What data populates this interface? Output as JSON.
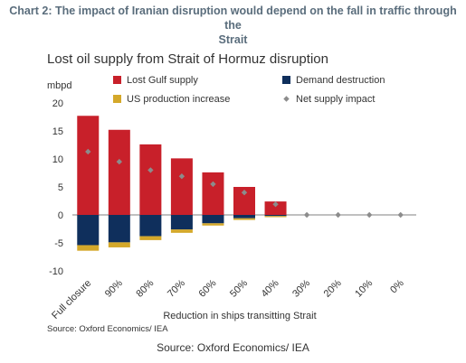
{
  "heading_line1": "Chart 2: The impact of Iranian disruption would depend on the fall in traffic through the",
  "heading_line2": "Strait",
  "footer_source": "Source: Oxford Economics/ IEA",
  "colors": {
    "lost_gulf_supply": "#c8202a",
    "demand_destruction": "#0f2f5c",
    "us_production_increase": "#d4a82a",
    "net_supply_impact": "#8c8c8c"
  },
  "chart_data": {
    "type": "bar",
    "title": "Lost oil supply from Strait of Hormuz disruption",
    "ylabel": "mbpd",
    "xlabel": "Reduction in ships transitting Strait",
    "source": "Source: Oxford Economics/ IEA",
    "ylim": [
      -10,
      20
    ],
    "yticks": [
      -10,
      -5,
      0,
      5,
      10,
      15,
      20
    ],
    "stacked": true,
    "legend_position": "top",
    "categories": [
      "Full closure",
      "90%",
      "80%",
      "70%",
      "60%",
      "50%",
      "40%",
      "30%",
      "20%",
      "10%",
      "0%"
    ],
    "series": [
      {
        "name": "Lost Gulf supply",
        "kind": "bar",
        "values": [
          17.7,
          15.2,
          12.6,
          10.1,
          7.6,
          5.0,
          2.4,
          0,
          0,
          0,
          0
        ]
      },
      {
        "name": "Demand destruction",
        "kind": "bar",
        "values": [
          -5.4,
          -4.9,
          -3.8,
          -2.6,
          -1.5,
          -0.6,
          -0.2,
          0,
          0,
          0,
          0
        ]
      },
      {
        "name": "US production increase",
        "kind": "bar",
        "values": [
          -1.0,
          -0.9,
          -0.7,
          -0.6,
          -0.4,
          -0.3,
          -0.2,
          0,
          0,
          0,
          0
        ]
      },
      {
        "name": "Net supply impact",
        "kind": "marker",
        "values": [
          11.3,
          9.5,
          8.0,
          6.9,
          5.5,
          4.0,
          1.9,
          0,
          0,
          0,
          0
        ]
      }
    ]
  }
}
